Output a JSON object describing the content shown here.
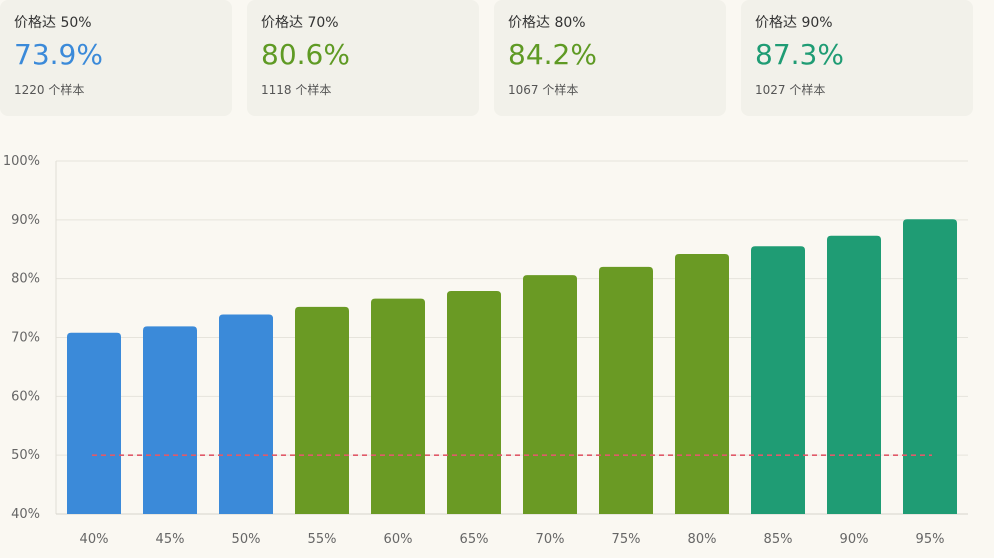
{
  "cards": [
    {
      "label": "价格达 50%",
      "value": "73.9%",
      "sample": "1220 个样本",
      "color": "#3b8ad9"
    },
    {
      "label": "价格达 70%",
      "value": "80.6%",
      "sample": "1118 个样本",
      "color": "#5f9a24"
    },
    {
      "label": "价格达 80%",
      "value": "84.2%",
      "sample": "1067 个样本",
      "color": "#5f9a24"
    },
    {
      "label": "价格达 90%",
      "value": "87.3%",
      "sample": "1027 个样本",
      "color": "#1f9c74"
    }
  ],
  "chart_data": {
    "type": "bar",
    "categories": [
      "40%",
      "45%",
      "50%",
      "55%",
      "60%",
      "65%",
      "70%",
      "75%",
      "80%",
      "85%",
      "90%",
      "95%"
    ],
    "values": [
      70.8,
      71.9,
      73.9,
      75.2,
      76.6,
      77.9,
      80.6,
      82.0,
      84.2,
      85.5,
      87.3,
      90.1
    ],
    "bar_colors": [
      "#3b8ad9",
      "#3b8ad9",
      "#3b8ad9",
      "#6a9a24",
      "#6a9a24",
      "#6a9a24",
      "#6a9a24",
      "#6a9a24",
      "#6a9a24",
      "#1f9c74",
      "#1f9c74",
      "#1f9c74"
    ],
    "ylim": [
      40,
      100
    ],
    "yticks": [
      "40%",
      "50%",
      "60%",
      "70%",
      "80%",
      "90%",
      "100%"
    ],
    "ytick_values": [
      40,
      50,
      60,
      70,
      80,
      90,
      100
    ],
    "reference_line": {
      "value": 50,
      "color": "#e05a6a",
      "style": "dashed"
    },
    "grid": true,
    "title": "",
    "xlabel": "",
    "ylabel": ""
  }
}
